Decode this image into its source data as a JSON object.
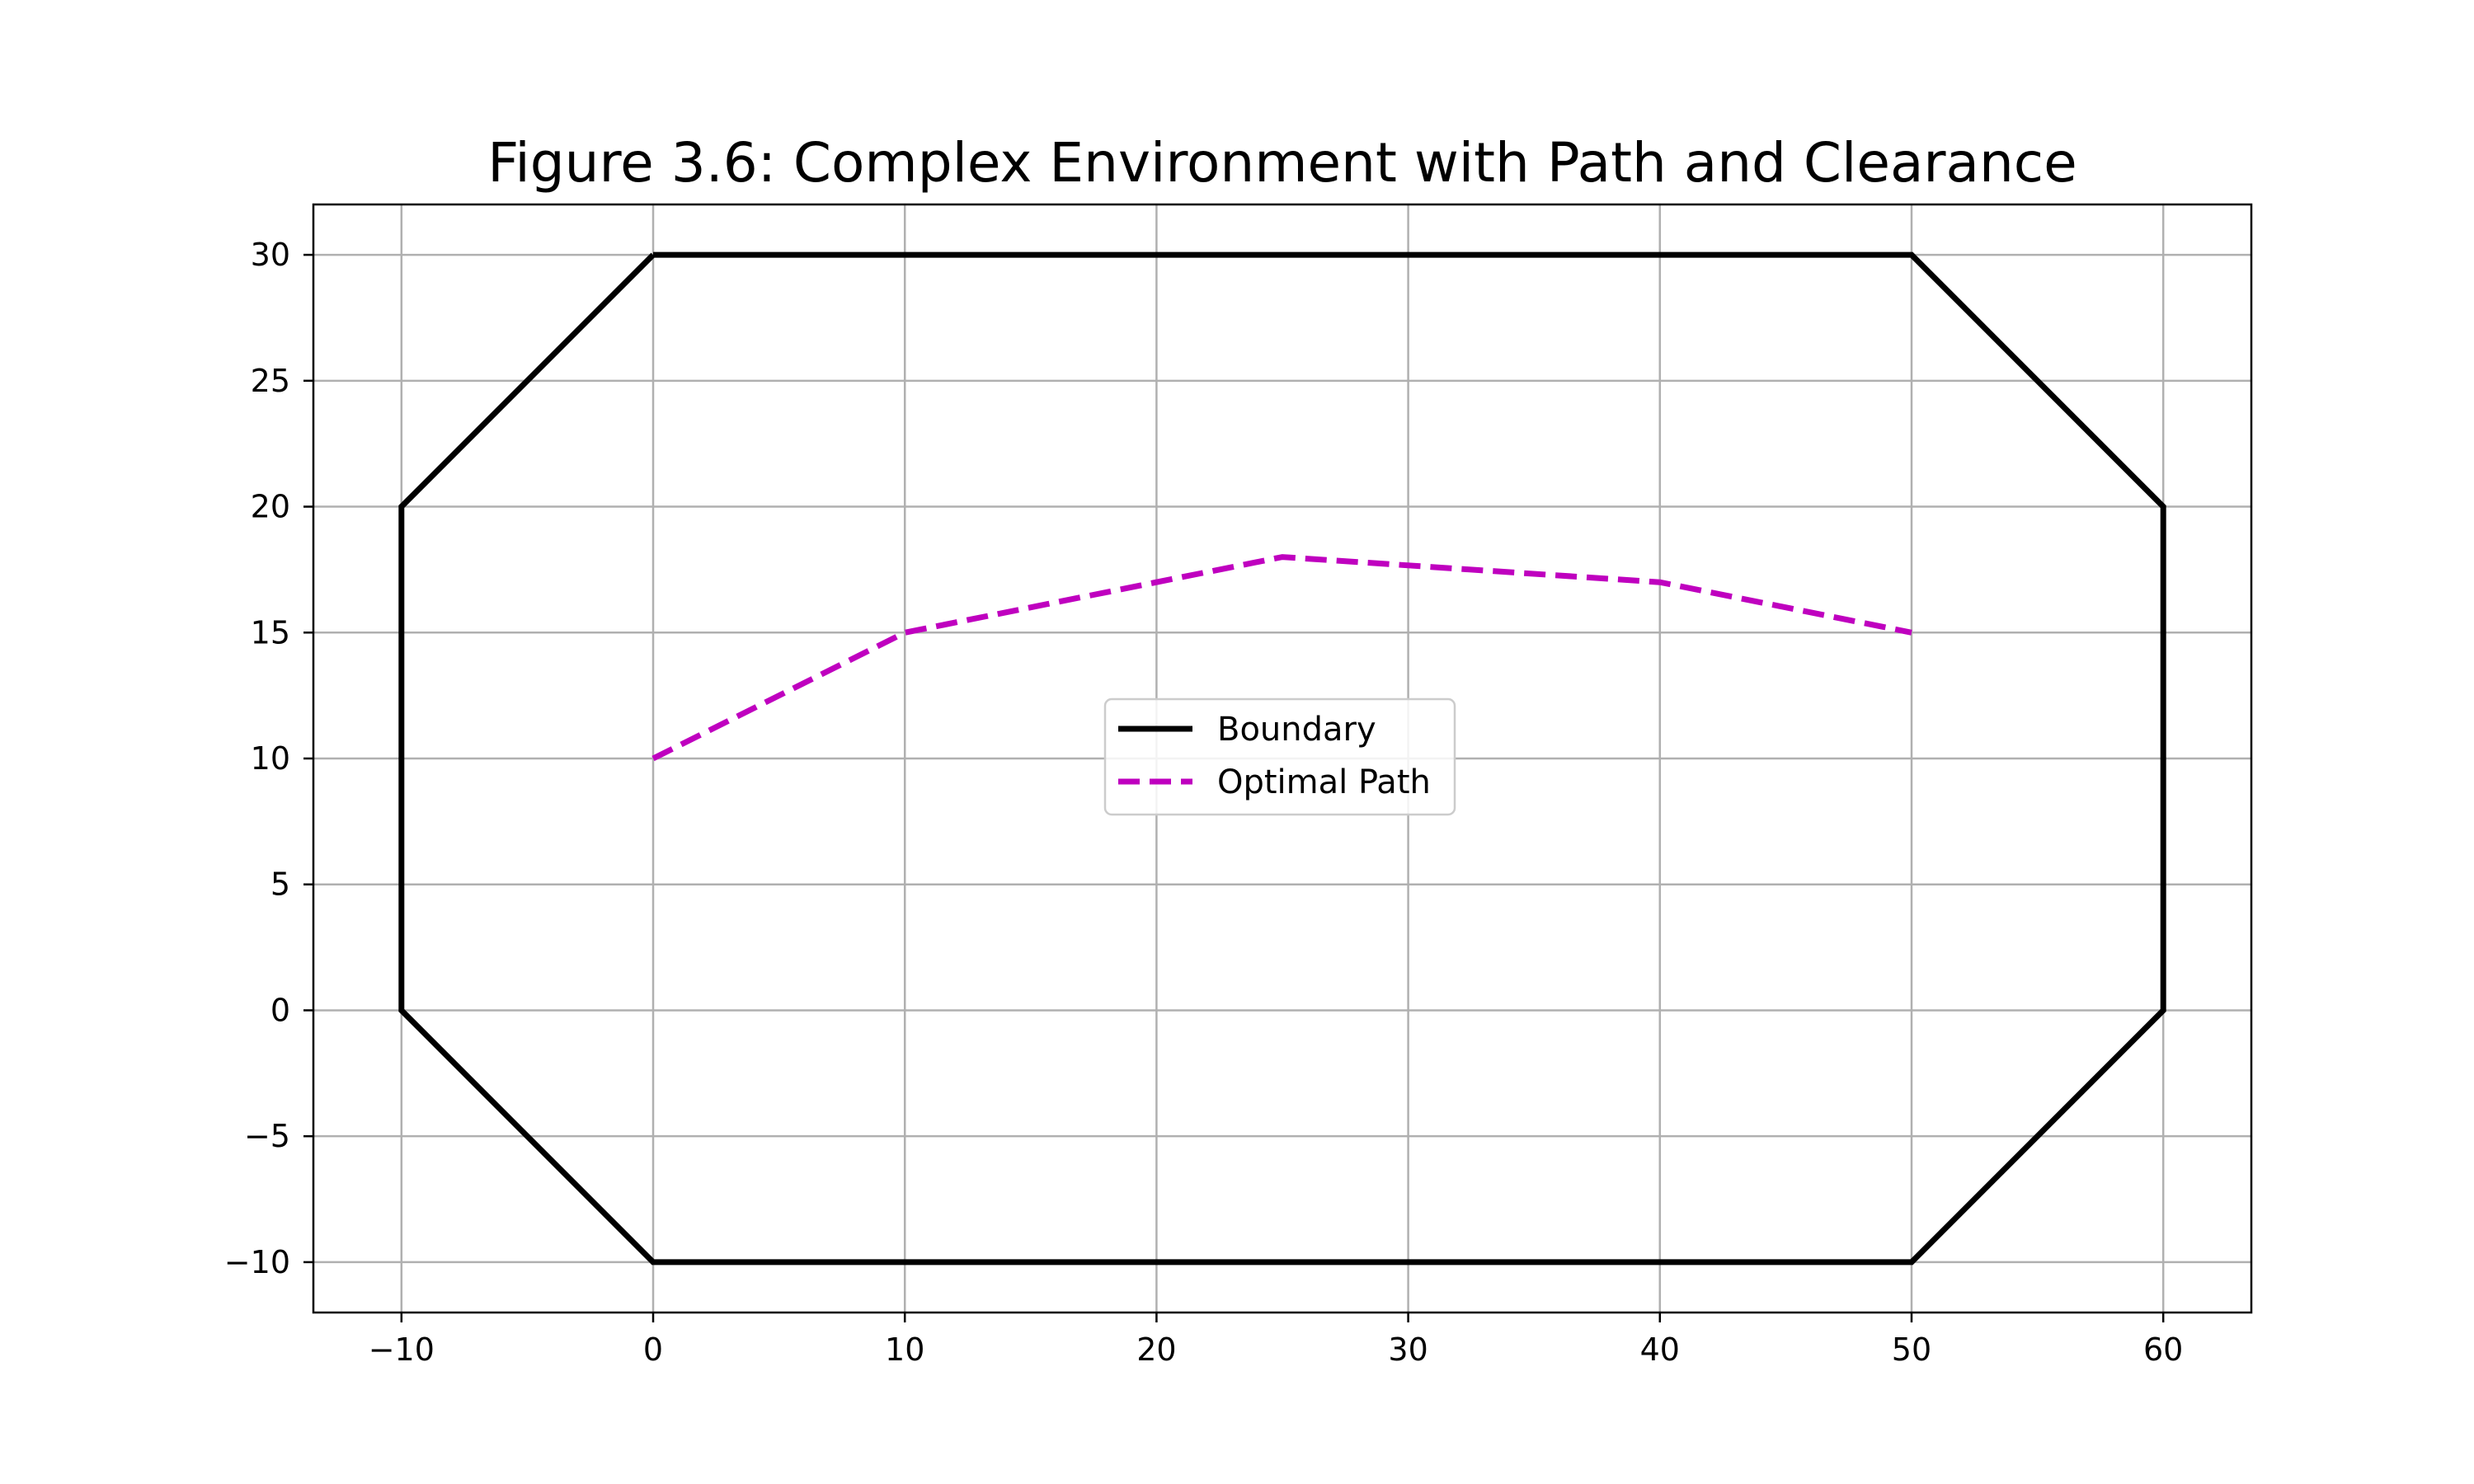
{
  "chart_data": {
    "type": "line",
    "title": "Figure 3.6: Complex Environment with Path and Clearance",
    "xlabel": "",
    "ylabel": "",
    "xlim": [
      -13.5,
      63.5
    ],
    "ylim": [
      -12,
      32
    ],
    "x_ticks": [
      -10,
      0,
      10,
      20,
      30,
      40,
      50,
      60
    ],
    "x_tick_labels": [
      "−10",
      "0",
      "10",
      "20",
      "30",
      "40",
      "50",
      "60"
    ],
    "y_ticks": [
      -10,
      -5,
      0,
      5,
      10,
      15,
      20,
      25,
      30
    ],
    "y_tick_labels": [
      "−10",
      "−5",
      "0",
      "5",
      "10",
      "15",
      "20",
      "25",
      "30"
    ],
    "grid": true,
    "legend_position": "center",
    "series": [
      {
        "name": "Boundary",
        "color": "#000000",
        "style": "solid",
        "points": [
          [
            0,
            30
          ],
          [
            50,
            30
          ],
          [
            60,
            20
          ],
          [
            60,
            0
          ],
          [
            50,
            -10
          ],
          [
            0,
            -10
          ],
          [
            -10,
            0
          ],
          [
            -10,
            20
          ],
          [
            0,
            30
          ]
        ]
      },
      {
        "name": "Optimal Path",
        "color": "#bf00bf",
        "style": "dashed",
        "points": [
          [
            0,
            10
          ],
          [
            10,
            15
          ],
          [
            25,
            18
          ],
          [
            40,
            17
          ],
          [
            50,
            15
          ]
        ]
      }
    ]
  }
}
